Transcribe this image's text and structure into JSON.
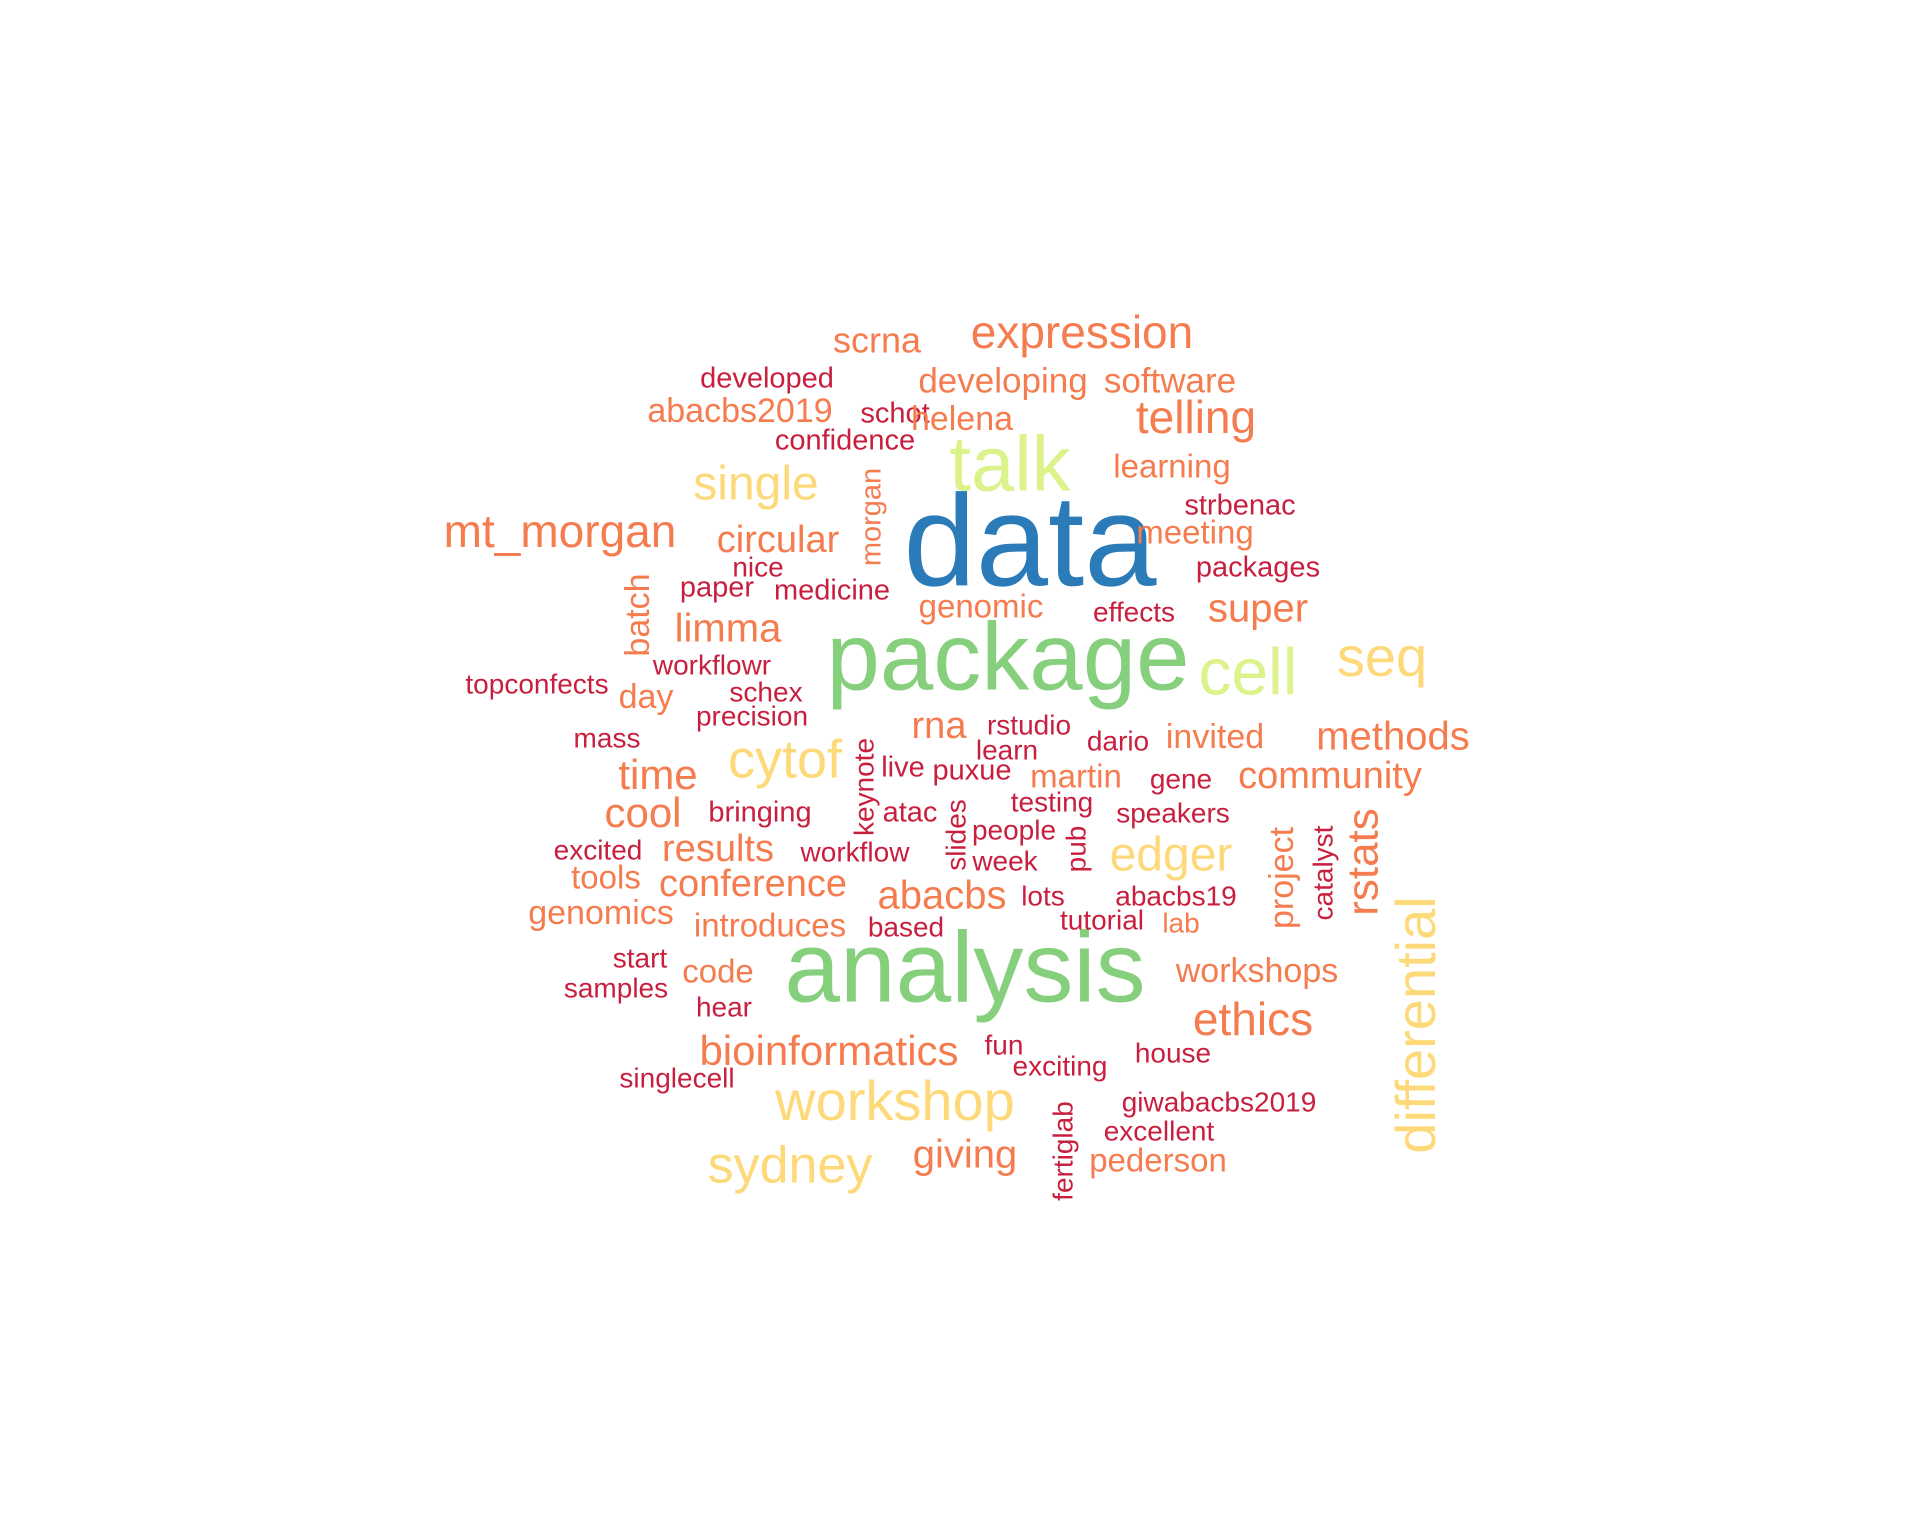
{
  "palette": {
    "blue": "#2b7bb9",
    "green": "#86cf7c",
    "lime": "#dcf28a",
    "yellow": "#fdd979",
    "orange": "#f57c4f",
    "red": "#c81f3e"
  },
  "words": [
    {
      "text": "data",
      "color": "blue"
    },
    {
      "text": "package",
      "color": "green"
    },
    {
      "text": "analysis",
      "color": "green"
    },
    {
      "text": "talk",
      "color": "lime"
    },
    {
      "text": "cell",
      "color": "lime"
    },
    {
      "text": "expression",
      "color": "orange"
    },
    {
      "text": "scrna",
      "color": "orange"
    },
    {
      "text": "developed",
      "color": "red"
    },
    {
      "text": "developing",
      "color": "orange"
    },
    {
      "text": "software",
      "color": "orange"
    },
    {
      "text": "abacbs2019",
      "color": "orange"
    },
    {
      "text": "schot",
      "color": "red"
    },
    {
      "text": "helena",
      "color": "orange"
    },
    {
      "text": "telling",
      "color": "orange"
    },
    {
      "text": "confidence",
      "color": "red"
    },
    {
      "text": "single",
      "color": "yellow"
    },
    {
      "text": "learning",
      "color": "orange"
    },
    {
      "text": "morgan",
      "color": "orange"
    },
    {
      "text": "strbenac",
      "color": "red"
    },
    {
      "text": "mt_morgan",
      "color": "orange"
    },
    {
      "text": "circular",
      "color": "orange"
    },
    {
      "text": "meeting",
      "color": "orange"
    },
    {
      "text": "nice",
      "color": "red"
    },
    {
      "text": "packages",
      "color": "red"
    },
    {
      "text": "paper",
      "color": "red"
    },
    {
      "text": "medicine",
      "color": "red"
    },
    {
      "text": "batch",
      "color": "orange"
    },
    {
      "text": "genomic",
      "color": "orange"
    },
    {
      "text": "effects",
      "color": "red"
    },
    {
      "text": "super",
      "color": "orange"
    },
    {
      "text": "limma",
      "color": "orange"
    },
    {
      "text": "seq",
      "color": "yellow"
    },
    {
      "text": "workflowr",
      "color": "red"
    },
    {
      "text": "topconfects",
      "color": "red"
    },
    {
      "text": "schex",
      "color": "red"
    },
    {
      "text": "day",
      "color": "orange"
    },
    {
      "text": "precision",
      "color": "red"
    },
    {
      "text": "rna",
      "color": "orange"
    },
    {
      "text": "rstudio",
      "color": "red"
    },
    {
      "text": "mass",
      "color": "red"
    },
    {
      "text": "cytof",
      "color": "yellow"
    },
    {
      "text": "keynote",
      "color": "red"
    },
    {
      "text": "learn",
      "color": "red"
    },
    {
      "text": "dario",
      "color": "red"
    },
    {
      "text": "invited",
      "color": "orange"
    },
    {
      "text": "methods",
      "color": "orange"
    },
    {
      "text": "time",
      "color": "orange"
    },
    {
      "text": "live",
      "color": "red"
    },
    {
      "text": "puxue",
      "color": "red"
    },
    {
      "text": "martin",
      "color": "orange"
    },
    {
      "text": "gene",
      "color": "red"
    },
    {
      "text": "community",
      "color": "orange"
    },
    {
      "text": "cool",
      "color": "orange"
    },
    {
      "text": "bringing",
      "color": "red"
    },
    {
      "text": "atac",
      "color": "red"
    },
    {
      "text": "slides",
      "color": "red"
    },
    {
      "text": "testing",
      "color": "red"
    },
    {
      "text": "speakers",
      "color": "red"
    },
    {
      "text": "people",
      "color": "red"
    },
    {
      "text": "pub",
      "color": "red"
    },
    {
      "text": "project",
      "color": "orange"
    },
    {
      "text": "catalyst",
      "color": "red"
    },
    {
      "text": "rstats",
      "color": "orange"
    },
    {
      "text": "excited",
      "color": "red"
    },
    {
      "text": "results",
      "color": "orange"
    },
    {
      "text": "workflow",
      "color": "red"
    },
    {
      "text": "week",
      "color": "red"
    },
    {
      "text": "edger",
      "color": "yellow"
    },
    {
      "text": "tools",
      "color": "orange"
    },
    {
      "text": "conference",
      "color": "orange"
    },
    {
      "text": "abacbs",
      "color": "orange"
    },
    {
      "text": "lots",
      "color": "red"
    },
    {
      "text": "abacbs19",
      "color": "red"
    },
    {
      "text": "differential",
      "color": "yellow"
    },
    {
      "text": "genomics",
      "color": "orange"
    },
    {
      "text": "introduces",
      "color": "orange"
    },
    {
      "text": "based",
      "color": "red"
    },
    {
      "text": "tutorial",
      "color": "red"
    },
    {
      "text": "lab",
      "color": "orange"
    },
    {
      "text": "start",
      "color": "red"
    },
    {
      "text": "code",
      "color": "orange"
    },
    {
      "text": "workshops",
      "color": "orange"
    },
    {
      "text": "samples",
      "color": "red"
    },
    {
      "text": "hear",
      "color": "red"
    },
    {
      "text": "ethics",
      "color": "orange"
    },
    {
      "text": "bioinformatics",
      "color": "orange"
    },
    {
      "text": "fun",
      "color": "red"
    },
    {
      "text": "house",
      "color": "red"
    },
    {
      "text": "exciting",
      "color": "red"
    },
    {
      "text": "singlecell",
      "color": "red"
    },
    {
      "text": "workshop",
      "color": "yellow"
    },
    {
      "text": "giwabacbs2019",
      "color": "red"
    },
    {
      "text": "fertiglab",
      "color": "red"
    },
    {
      "text": "excellent",
      "color": "red"
    },
    {
      "text": "sydney",
      "color": "yellow"
    },
    {
      "text": "giving",
      "color": "orange"
    },
    {
      "text": "pederson",
      "color": "orange"
    }
  ]
}
